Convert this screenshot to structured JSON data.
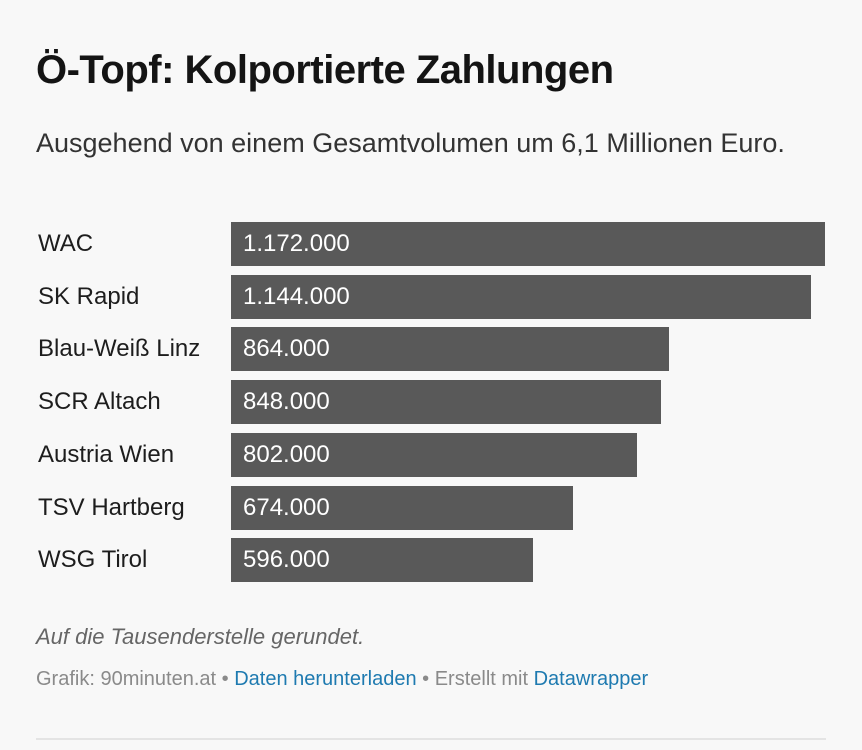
{
  "header": {
    "title": "Ö-Topf: Kolportierte Zahlungen",
    "subtitle": "Ausgehend von einem Gesamtvolumen um 6,1 Millionen Euro."
  },
  "chart_data": {
    "type": "bar",
    "orientation": "horizontal",
    "categories": [
      "WAC",
      "SK Rapid",
      "Blau-Weiß Linz",
      "SCR Altach",
      "Austria Wien",
      "TSV Hartberg",
      "WSG Tirol"
    ],
    "values": [
      1172000,
      1144000,
      864000,
      848000,
      802000,
      674000,
      596000
    ],
    "value_labels": [
      "1.172.000",
      "1.144.000",
      "864.000",
      "848.000",
      "802.000",
      "674.000",
      "596.000"
    ],
    "xlim": [
      0,
      1172000
    ],
    "bar_color": "#595959",
    "value_label_color": "#ffffff",
    "grid": false,
    "legend": "none"
  },
  "notes": {
    "text": "Auf die Tausenderstelle gerundet."
  },
  "footer": {
    "source": "Grafik: 90minuten.at",
    "sep1": " • ",
    "download_link": "Daten herunterladen",
    "sep2": " • ",
    "made_with": "Erstellt mit ",
    "datawrapper_link": "Datawrapper",
    "link_color": "#1e7ab0"
  }
}
